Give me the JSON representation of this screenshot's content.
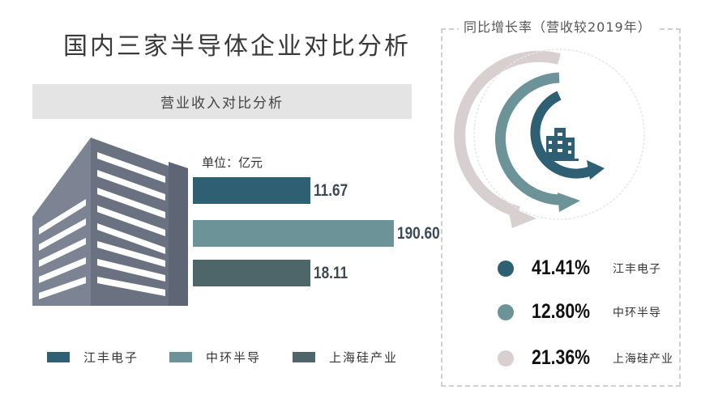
{
  "title": "国内三家半导体企业对比分析",
  "revenue_section": {
    "header": "营业收入对比分析",
    "unit_label": "单位：亿元"
  },
  "growth_section": {
    "title": "同比增长率（营收较2019年）"
  },
  "colors": {
    "jiangfeng": "#2e5f73",
    "zhonghuan": "#6b9398",
    "shanghai_bars": "#4e6669",
    "shanghai_stat": "#d8cfd1",
    "building": "#6a7282"
  },
  "chart_data": [
    {
      "type": "bar",
      "orientation": "horizontal",
      "title": "营业收入对比分析",
      "unit": "单位：亿元",
      "categories": [
        "江丰电子",
        "中环半导",
        "上海硅产业"
      ],
      "values": [
        11.67,
        190.6,
        18.11
      ],
      "value_labels": [
        "11.67",
        "190.60",
        "18.11"
      ],
      "legend": [
        "江丰电子",
        "中环半导",
        "上海硅产业"
      ],
      "legend_placement": "bottom"
    },
    {
      "type": "radial",
      "title": "同比增长率（营收较2019年）",
      "categories": [
        "江丰电子",
        "中环半导",
        "上海硅产业"
      ],
      "values": [
        41.41,
        12.8,
        21.36
      ],
      "value_labels": [
        "41.41%",
        "12.80%",
        "21.36%"
      ],
      "unit": "%"
    }
  ]
}
